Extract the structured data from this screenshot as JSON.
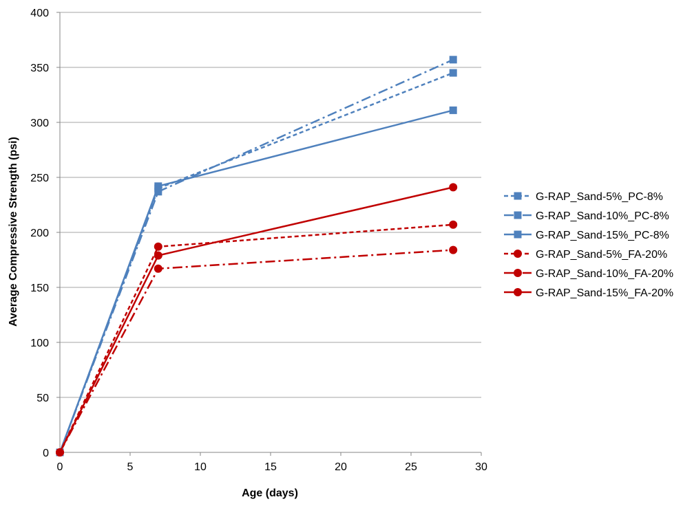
{
  "chart_data": {
    "type": "line",
    "title": "",
    "xlabel": "Age (days)",
    "ylabel": "Average Compressive Strength (psi)",
    "xlim": [
      0,
      30
    ],
    "ylim": [
      0,
      400
    ],
    "xticks": [
      0,
      5,
      10,
      15,
      20,
      25,
      30
    ],
    "yticks": [
      0,
      50,
      100,
      150,
      200,
      250,
      300,
      350,
      400
    ],
    "grid": "horizontal",
    "legend_position": "right",
    "colors": {
      "pc": "#4F81BD",
      "fa": "#C00000",
      "grid": "#A6A6A6"
    },
    "series": [
      {
        "name": "G-RAP_Sand-5%_PC-8%",
        "color": "#4F81BD",
        "marker": "square",
        "dash": "dashed",
        "x": [
          0,
          7,
          28
        ],
        "y": [
          0,
          240,
          345
        ]
      },
      {
        "name": "G-RAP_Sand-10%_PC-8%",
        "color": "#4F81BD",
        "marker": "square",
        "dash": "dashdot",
        "x": [
          0,
          7,
          28
        ],
        "y": [
          0,
          237,
          357
        ]
      },
      {
        "name": "G-RAP_Sand-15%_PC-8%",
        "color": "#4F81BD",
        "marker": "square",
        "dash": "solid",
        "x": [
          0,
          7,
          28
        ],
        "y": [
          0,
          242,
          311
        ]
      },
      {
        "name": "G-RAP_Sand-5%_FA-20%",
        "color": "#C00000",
        "marker": "circle",
        "dash": "dashed",
        "x": [
          0,
          7,
          28
        ],
        "y": [
          0,
          187,
          207
        ]
      },
      {
        "name": "G-RAP_Sand-10%_FA-20%",
        "color": "#C00000",
        "marker": "circle",
        "dash": "dashdot",
        "x": [
          0,
          7,
          28
        ],
        "y": [
          0,
          167,
          184
        ]
      },
      {
        "name": "G-RAP_Sand-15%_FA-20%",
        "color": "#C00000",
        "marker": "circle",
        "dash": "solid",
        "x": [
          0,
          7,
          28
        ],
        "y": [
          0,
          179,
          241
        ]
      }
    ]
  }
}
